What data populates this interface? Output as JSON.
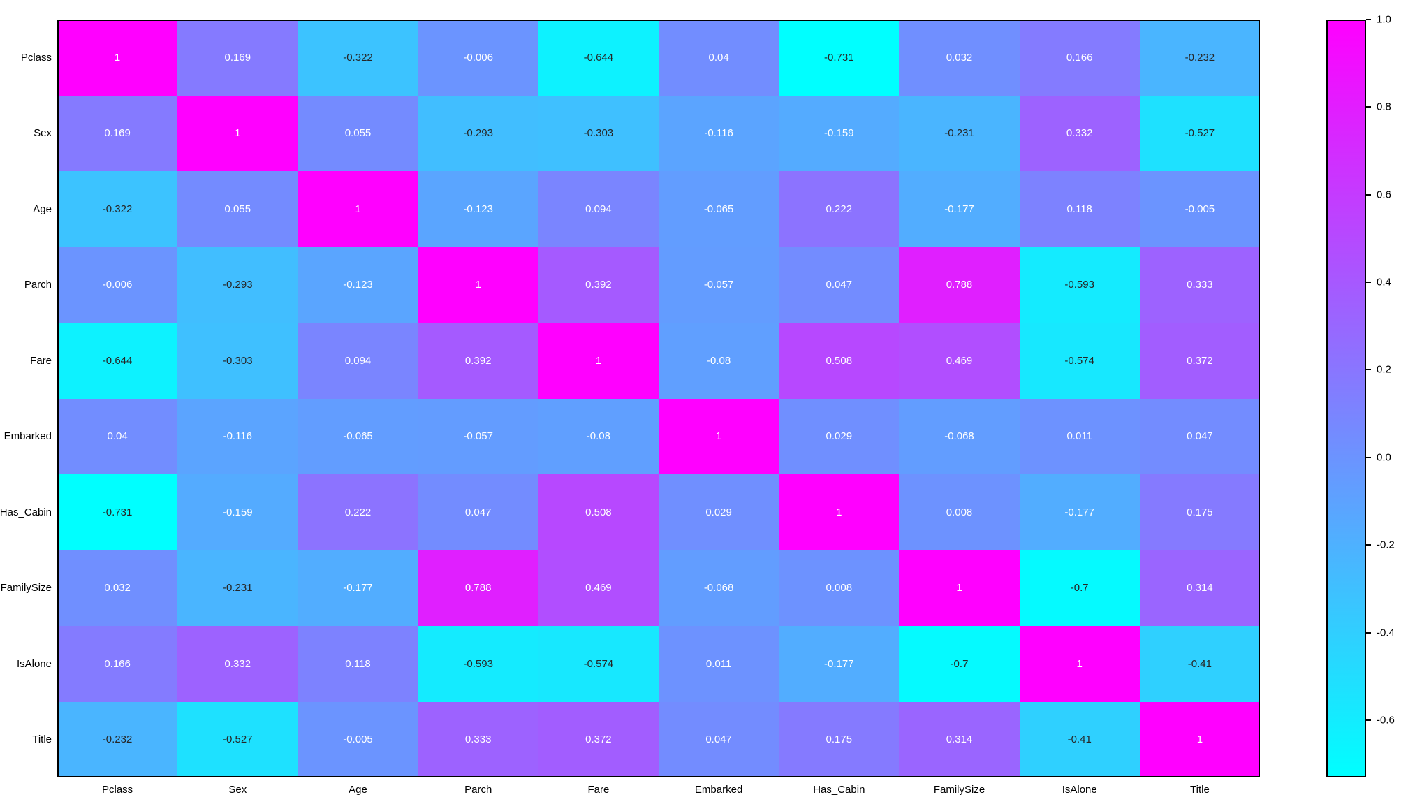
{
  "figure": {
    "background": "#ffffff",
    "kind": "seaborn-style annotated correlation heatmap"
  },
  "chart_data": {
    "type": "heatmap",
    "title": "",
    "xlabel": "",
    "ylabel": "",
    "labels": [
      "Pclass",
      "Sex",
      "Age",
      "Parch",
      "Fare",
      "Embarked",
      "Has_Cabin",
      "FamilySize",
      "IsAlone",
      "Title"
    ],
    "matrix": [
      [
        1,
        0.169,
        -0.322,
        -0.006,
        -0.644,
        0.04,
        -0.731,
        0.032,
        0.166,
        -0.232
      ],
      [
        0.169,
        1,
        0.055,
        -0.293,
        -0.303,
        -0.116,
        -0.159,
        -0.231,
        0.332,
        -0.527
      ],
      [
        -0.322,
        0.055,
        1,
        -0.123,
        0.094,
        -0.065,
        0.222,
        -0.177,
        0.118,
        -0.005
      ],
      [
        -0.006,
        -0.293,
        -0.123,
        1,
        0.392,
        -0.057,
        0.047,
        0.788,
        -0.593,
        0.333
      ],
      [
        -0.644,
        -0.303,
        0.094,
        0.392,
        1,
        -0.08,
        0.508,
        0.469,
        -0.574,
        0.372
      ],
      [
        0.04,
        -0.116,
        -0.065,
        -0.057,
        -0.08,
        1,
        0.029,
        -0.068,
        0.011,
        0.047
      ],
      [
        -0.731,
        -0.159,
        0.222,
        0.047,
        0.508,
        0.029,
        1,
        0.008,
        -0.177,
        0.175
      ],
      [
        0.032,
        -0.231,
        -0.177,
        0.788,
        0.469,
        -0.068,
        0.008,
        1,
        -0.7,
        0.314
      ],
      [
        0.166,
        0.332,
        0.118,
        -0.593,
        -0.574,
        0.011,
        -0.177,
        -0.7,
        1,
        -0.41
      ],
      [
        -0.232,
        -0.527,
        -0.005,
        0.333,
        0.372,
        0.047,
        0.175,
        0.314,
        -0.41,
        1
      ]
    ],
    "vmin": -0.731,
    "vmax": 1.0,
    "colormap": {
      "name": "cool",
      "low_color": "#00ffff",
      "high_color": "#ff00ff"
    },
    "annotations": true,
    "annotation_colors": {
      "light": "#ffffff",
      "dark": "#262626",
      "luminance_threshold": 0.408
    },
    "grid": false,
    "legend": "colorbar-right",
    "colorbar": {
      "ticks": [
        1.0,
        0.8,
        0.6,
        0.4,
        0.2,
        0.0,
        -0.2,
        -0.4,
        -0.6
      ],
      "tick_labels": [
        "1.0",
        "0.8",
        "0.6",
        "0.4",
        "0.2",
        "0.0",
        "-0.2",
        "-0.4",
        "-0.6"
      ]
    }
  }
}
